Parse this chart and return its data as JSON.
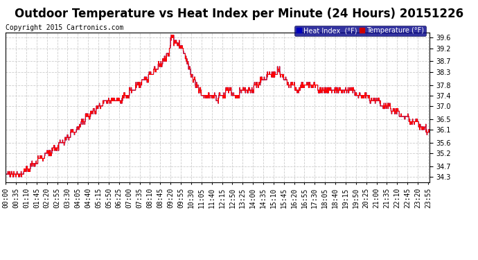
{
  "title": "Outdoor Temperature vs Heat Index per Minute (24 Hours) 20151226",
  "copyright": "Copyright 2015 Cartronics.com",
  "ylim": [
    34.1,
    39.8
  ],
  "yticks": [
    34.3,
    34.7,
    35.2,
    35.6,
    36.1,
    36.5,
    37.0,
    37.4,
    37.8,
    38.3,
    38.7,
    39.2,
    39.6
  ],
  "background_color": "#ffffff",
  "plot_background": "#ffffff",
  "grid_color": "#cccccc",
  "temp_color": "#ff0000",
  "heat_color": "#0000bb",
  "legend_heat_bg": "#0000bb",
  "legend_temp_bg": "#cc0000",
  "title_fontsize": 12,
  "copyright_fontsize": 7,
  "tick_fontsize": 7,
  "xtick_every": 35
}
